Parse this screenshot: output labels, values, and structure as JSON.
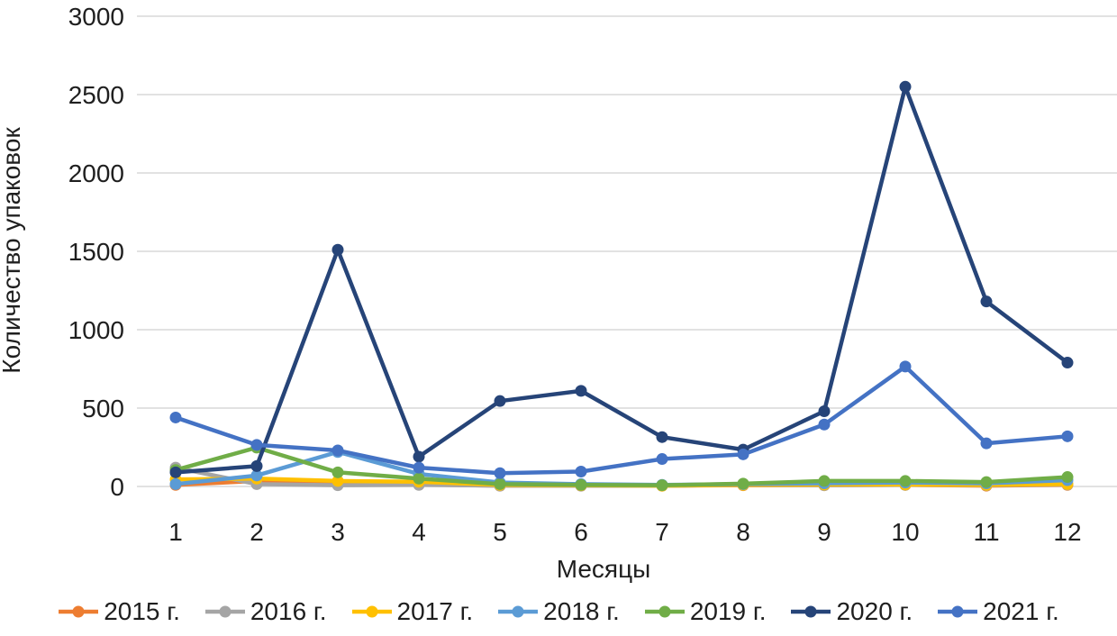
{
  "chart_data": {
    "type": "line",
    "title": "",
    "xlabel": "Месяцы",
    "ylabel": "Количество упаковок",
    "categories": [
      "1",
      "2",
      "3",
      "4",
      "5",
      "6",
      "7",
      "8",
      "9",
      "10",
      "11",
      "12"
    ],
    "ylim": [
      0,
      3000
    ],
    "yticks": [
      0,
      500,
      1000,
      1500,
      2000,
      2500,
      3000
    ],
    "grid": true,
    "gridline_color": "#d9d9d9",
    "legend_position": "bottom",
    "marker": "circle",
    "series": [
      {
        "name": "2015 г.",
        "color": "#ED7D31",
        "values": [
          10,
          35,
          20,
          12,
          5,
          5,
          5,
          8,
          8,
          10,
          5,
          10
        ]
      },
      {
        "name": "2016 г.",
        "color": "#A5A5A5",
        "values": [
          120,
          15,
          8,
          10,
          5,
          5,
          5,
          10,
          8,
          10,
          8,
          12
        ]
      },
      {
        "name": "2017 г.",
        "color": "#FFC000",
        "values": [
          45,
          50,
          35,
          30,
          10,
          8,
          5,
          10,
          12,
          12,
          10,
          15
        ]
      },
      {
        "name": "2018 г.",
        "color": "#5B9BD5",
        "values": [
          15,
          70,
          220,
          80,
          25,
          15,
          10,
          15,
          20,
          25,
          20,
          40
        ]
      },
      {
        "name": "2019 г.",
        "color": "#70AD47",
        "values": [
          105,
          248,
          90,
          50,
          15,
          10,
          8,
          18,
          35,
          35,
          28,
          60
        ]
      },
      {
        "name": "2020 г.",
        "color": "#264478",
        "values": [
          90,
          130,
          1510,
          190,
          545,
          610,
          315,
          235,
          480,
          2550,
          1180,
          790
        ]
      },
      {
        "name": "2021 г.",
        "color": "#4472C4",
        "values": [
          440,
          265,
          230,
          120,
          85,
          95,
          175,
          205,
          395,
          765,
          275,
          320
        ]
      }
    ]
  }
}
